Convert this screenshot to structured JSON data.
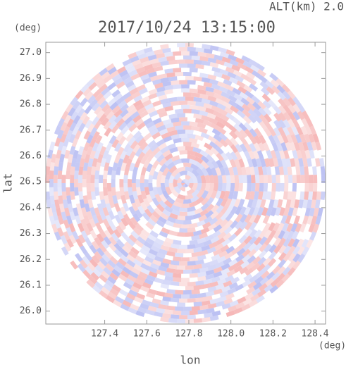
{
  "chart_data": {
    "type": "radar-image",
    "title": "2017/10/24 13:15:00",
    "subtitle": "ALT(km) 2.0",
    "x_label": "lon",
    "x_unit": "(deg)",
    "y_label": "lat",
    "y_unit": "(deg)",
    "xlim": [
      127.12,
      128.45
    ],
    "ylim": [
      25.95,
      27.04
    ],
    "xticks": [
      127.4,
      127.6,
      127.8,
      {
        "value": 128.0,
        "label": "128.0"
      },
      128.2,
      128.4
    ],
    "yticks": [
      {
        "value": 26.0,
        "label": "26.0"
      },
      26.1,
      26.2,
      26.3,
      26.4,
      26.5,
      26.6,
      26.7,
      26.8,
      26.9,
      {
        "value": 27.0,
        "label": "27.0"
      }
    ]
  }
}
